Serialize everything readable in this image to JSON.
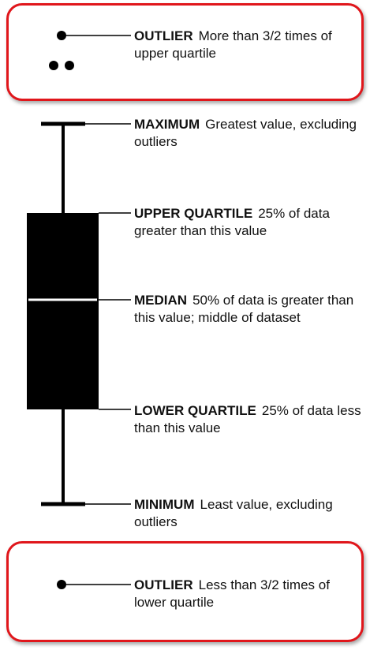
{
  "colors": {
    "callout_border": "#e0161b",
    "ink": "#000000",
    "median_line": "#ffffff"
  },
  "labels": [
    {
      "key": "outlier_high",
      "term": "OUTLIER",
      "desc": "More than 3/2 times of upper quartile"
    },
    {
      "key": "maximum",
      "term": "MAXIMUM",
      "desc": "Greatest value, excluding outliers"
    },
    {
      "key": "upper_quartile",
      "term": "UPPER QUARTILE",
      "desc": "25% of data greater than this value"
    },
    {
      "key": "median",
      "term": "MEDIAN",
      "desc": "50% of data is greater than this value; middle of dataset"
    },
    {
      "key": "lower_quartile",
      "term": "LOWER QUARTILE",
      "desc": "25% of data less than this value"
    },
    {
      "key": "minimum",
      "term": "MINIMUM",
      "desc": "Least value, excluding outliers"
    },
    {
      "key": "outlier_low",
      "term": "OUTLIER",
      "desc": "Less than 3/2 times of lower quartile"
    }
  ]
}
